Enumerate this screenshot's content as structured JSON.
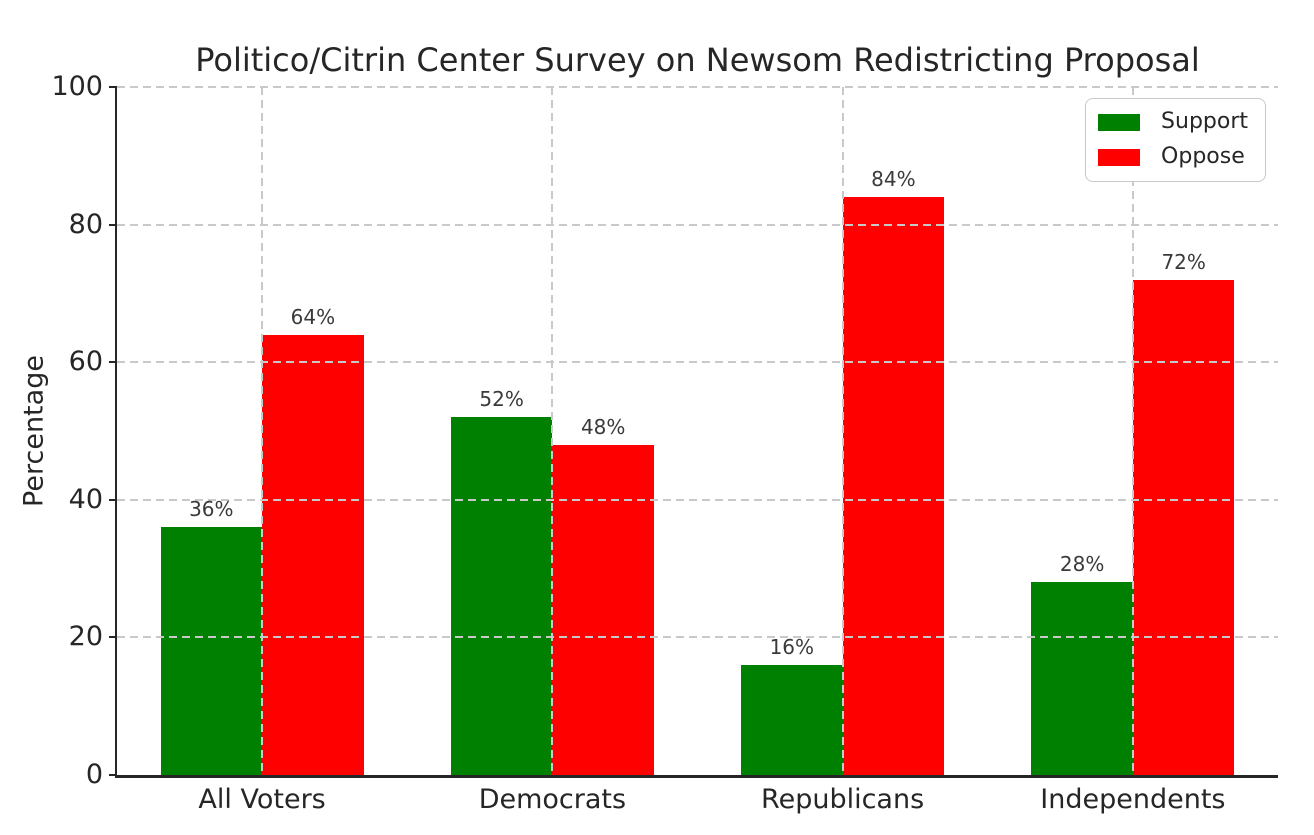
{
  "chart_data": {
    "type": "bar",
    "title": "Politico/Citrin Center Survey on Newsom Redistricting Proposal",
    "xlabel": "",
    "ylabel": "Percentage",
    "categories": [
      "All Voters",
      "Democrats",
      "Republicans",
      "Independents"
    ],
    "series": [
      {
        "name": "Support",
        "color": "#008000",
        "values": [
          36,
          52,
          16,
          28
        ],
        "labels": [
          "36%",
          "52%",
          "16%",
          "28%"
        ]
      },
      {
        "name": "Oppose",
        "color": "#ff0000",
        "values": [
          64,
          48,
          84,
          72
        ],
        "labels": [
          "64%",
          "48%",
          "84%",
          "72%"
        ]
      }
    ],
    "ylim": [
      0,
      100
    ],
    "yticks": [
      0,
      20,
      40,
      60,
      80,
      100
    ],
    "grid": {
      "on": true,
      "style": "dashed",
      "axes": "both",
      "color": "#c9c9c9",
      "above_bars": true
    },
    "legend": {
      "position": "upper right"
    },
    "bar_width_fraction": 0.35,
    "spines": {
      "left": true,
      "bottom": true,
      "top": false,
      "right": false
    }
  },
  "colors": {
    "support": "#008000",
    "oppose": "#ff0000",
    "text": "#262626",
    "grid": "#c9c9c9",
    "background": "#ffffff"
  }
}
